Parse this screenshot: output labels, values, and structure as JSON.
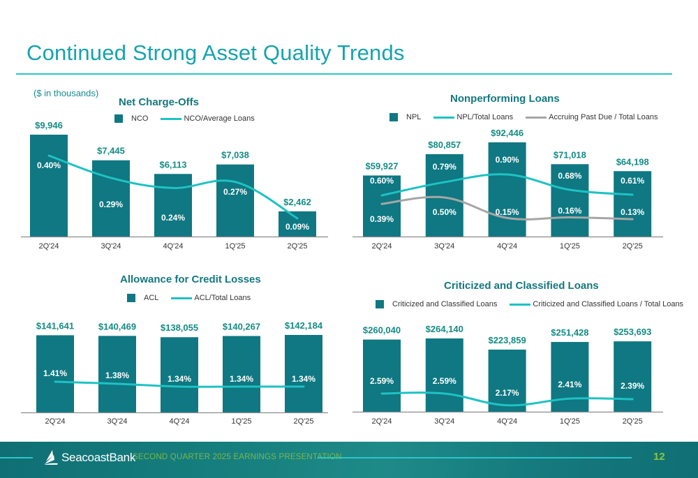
{
  "page": {
    "title": "Continued Strong Asset Quality Trends",
    "units_note": "($ in thousands)"
  },
  "colors": {
    "accent": "#16a3ad",
    "bar": "#0f7882",
    "line_primary": "#1ec2c4",
    "line_secondary": "#a6a6a6",
    "value_label": "#148c84",
    "footer_text": "#79b84a",
    "page_number": "#8cc63f"
  },
  "footer": {
    "brand": "SeacoastBank",
    "caption": "SECOND QUARTER 2025 EARNINGS PRESENTATION",
    "page_number": "12"
  },
  "chart_data": [
    {
      "id": "nco",
      "type": "bar",
      "title": "Net Charge-Offs",
      "categories": [
        "2Q'24",
        "3Q'24",
        "4Q'24",
        "1Q'25",
        "2Q'25"
      ],
      "legend": [
        {
          "label": "NCO",
          "kind": "box"
        },
        {
          "label": "NCO/Average Loans",
          "kind": "line",
          "color": "#1ec2c4"
        }
      ],
      "series": [
        {
          "name": "NCO",
          "kind": "bar",
          "values": [
            9946,
            7445,
            6113,
            7038,
            2462
          ],
          "labels": [
            "$9,946",
            "$7,445",
            "$6,113",
            "$7,038",
            "$2,462"
          ]
        },
        {
          "name": "NCO/Average Loans",
          "kind": "line",
          "values": [
            0.4,
            0.29,
            0.24,
            0.27,
            0.09
          ],
          "labels": [
            "0.40%",
            "0.29%",
            "0.24%",
            "0.27%",
            "0.09%"
          ]
        }
      ],
      "xlabel": "",
      "ylabel": "",
      "legend_position": "top-center",
      "grid": false
    },
    {
      "id": "npl",
      "type": "bar",
      "title": "Nonperforming Loans",
      "categories": [
        "2Q'24",
        "3Q'24",
        "4Q'24",
        "1Q'25",
        "2Q'25"
      ],
      "legend": [
        {
          "label": "NPL",
          "kind": "box"
        },
        {
          "label": "NPL/Total Loans",
          "kind": "line",
          "color": "#1ec2c4"
        },
        {
          "label": "Accruing Past Due  / Total Loans",
          "kind": "line",
          "color": "#a6a6a6"
        }
      ],
      "series": [
        {
          "name": "NPL",
          "kind": "bar",
          "values": [
            59927,
            80857,
            92446,
            71018,
            64198
          ],
          "labels": [
            "$59,927",
            "$80,857",
            "$92,446",
            "$71,018",
            "$64,198"
          ]
        },
        {
          "name": "NPL/Total Loans",
          "kind": "line",
          "values": [
            0.6,
            0.79,
            0.9,
            0.68,
            0.61
          ],
          "labels": [
            "0.60%",
            "0.79%",
            "0.90%",
            "0.68%",
            "0.61%"
          ]
        },
        {
          "name": "Accruing Past Due / Total Loans",
          "kind": "line",
          "values": [
            0.39,
            0.5,
            0.15,
            0.16,
            0.13
          ],
          "labels": [
            "0.39%",
            "0.50%",
            "0.15%",
            "0.16%",
            "0.13%"
          ]
        }
      ],
      "xlabel": "",
      "ylabel": "",
      "legend_position": "top-center",
      "grid": false
    },
    {
      "id": "acl",
      "type": "bar",
      "title": "Allowance for Credit Losses",
      "categories": [
        "2Q'24",
        "3Q'24",
        "4Q'24",
        "1Q'25",
        "2Q'25"
      ],
      "legend": [
        {
          "label": "ACL",
          "kind": "box"
        },
        {
          "label": "ACL/Total Loans",
          "kind": "line",
          "color": "#1ec2c4"
        }
      ],
      "series": [
        {
          "name": "ACL",
          "kind": "bar",
          "values": [
            141641,
            140469,
            138055,
            140267,
            142184
          ],
          "labels": [
            "$141,641",
            "$140,469",
            "$138,055",
            "$140,267",
            "$142,184"
          ]
        },
        {
          "name": "ACL/Total Loans",
          "kind": "line",
          "values": [
            1.41,
            1.38,
            1.34,
            1.34,
            1.34
          ],
          "labels": [
            "1.41%",
            "1.38%",
            "1.34%",
            "1.34%",
            "1.34%"
          ]
        }
      ],
      "xlabel": "",
      "ylabel": "",
      "legend_position": "top-center",
      "grid": false
    },
    {
      "id": "cc",
      "type": "bar",
      "title": "Criticized and Classified Loans",
      "categories": [
        "2Q'24",
        "3Q'24",
        "4Q'24",
        "1Q'25",
        "2Q'25"
      ],
      "legend": [
        {
          "label": "Criticized and Classified Loans",
          "kind": "box"
        },
        {
          "label": "Criticized and Classified Loans  / Total Loans",
          "kind": "line",
          "color": "#1ec2c4"
        }
      ],
      "series": [
        {
          "name": "Criticized and Classified Loans",
          "kind": "bar",
          "values": [
            260040,
            264140,
            223859,
            251428,
            253693
          ],
          "labels": [
            "$260,040",
            "$264,140",
            "$223,859",
            "$251,428",
            "$253,693"
          ]
        },
        {
          "name": "Criticized and Classified Loans / Total Loans",
          "kind": "line",
          "values": [
            2.59,
            2.59,
            2.17,
            2.41,
            2.39
          ],
          "labels": [
            "2.59%",
            "2.59%",
            "2.17%",
            "2.41%",
            "2.39%"
          ]
        }
      ],
      "xlabel": "",
      "ylabel": "",
      "legend_position": "top-center",
      "grid": false
    }
  ]
}
